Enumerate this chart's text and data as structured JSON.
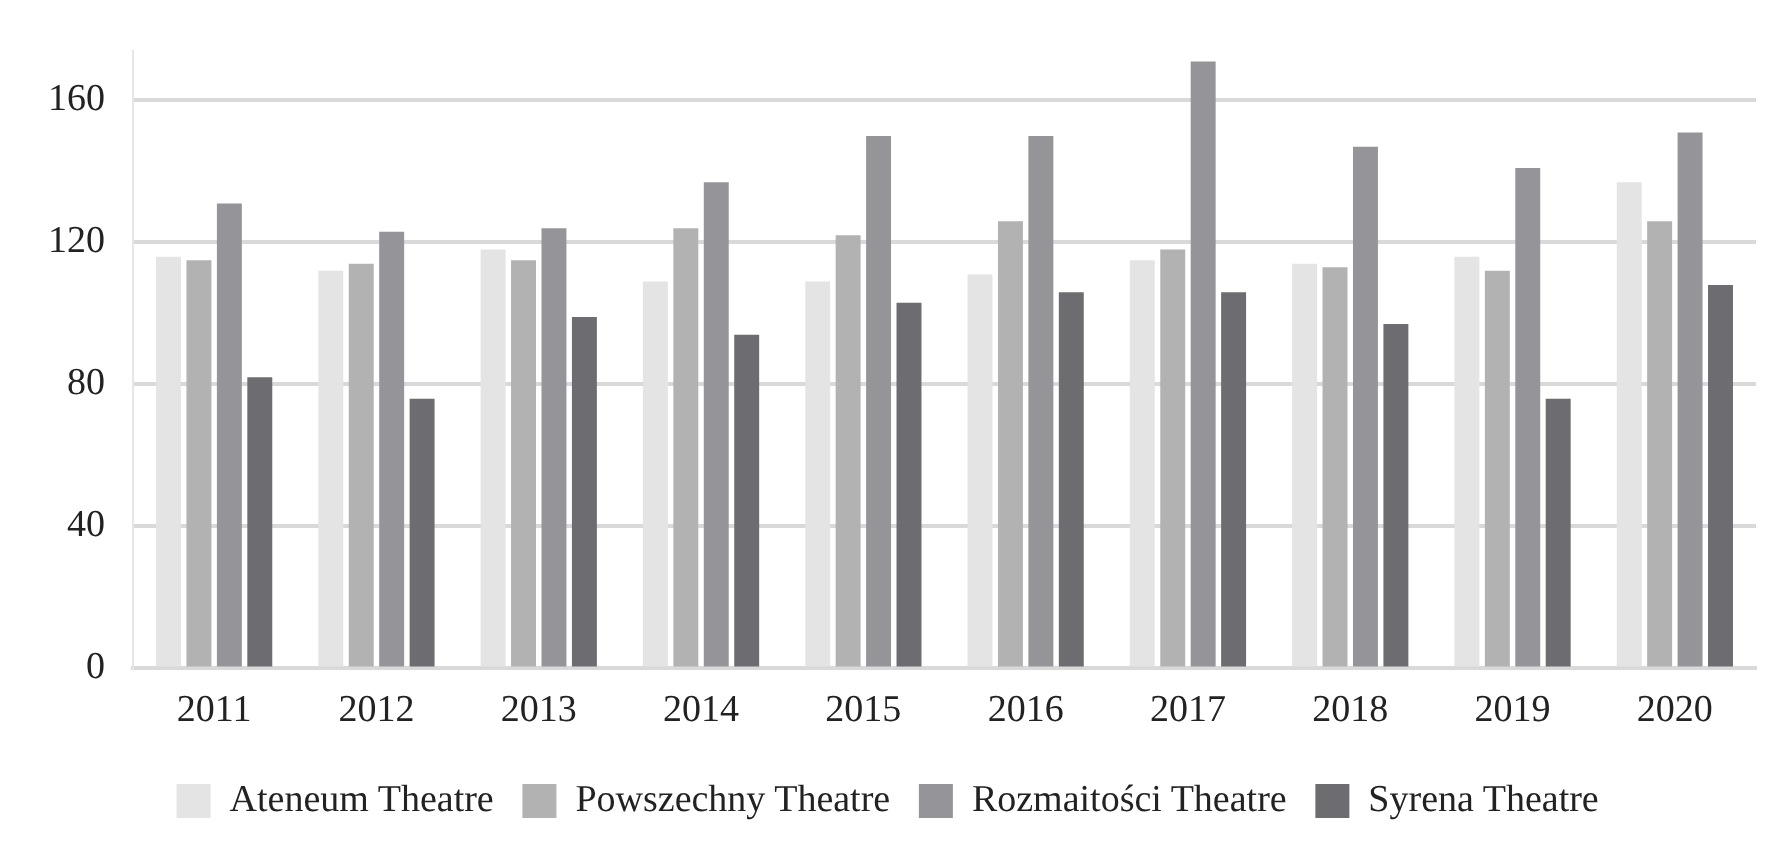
{
  "chart_data": {
    "type": "bar",
    "categories": [
      "2011",
      "2012",
      "2013",
      "2014",
      "2015",
      "2016",
      "2017",
      "2018",
      "2019",
      "2020"
    ],
    "series": [
      {
        "name": "Ateneum Theatre",
        "color": "#e4e4e4",
        "values": [
          116,
          112,
          118,
          109,
          109,
          111,
          115,
          114,
          116,
          137
        ]
      },
      {
        "name": "Powszechny Theatre",
        "color": "#b2b2b2",
        "values": [
          115,
          114,
          115,
          124,
          122,
          126,
          118,
          113,
          112,
          126
        ]
      },
      {
        "name": "Rozmaitości Theatre",
        "color": "#959599",
        "values": [
          131,
          123,
          124,
          137,
          150,
          150,
          171,
          147,
          141,
          151
        ]
      },
      {
        "name": "Syrena Theatre",
        "color": "#6d6d71",
        "values": [
          82,
          76,
          99,
          94,
          103,
          106,
          106,
          97,
          76,
          108
        ]
      }
    ],
    "ylim": [
      0,
      174
    ],
    "yticks": [
      0,
      40,
      80,
      120,
      160
    ],
    "grid": "y",
    "legend": "bottom"
  }
}
